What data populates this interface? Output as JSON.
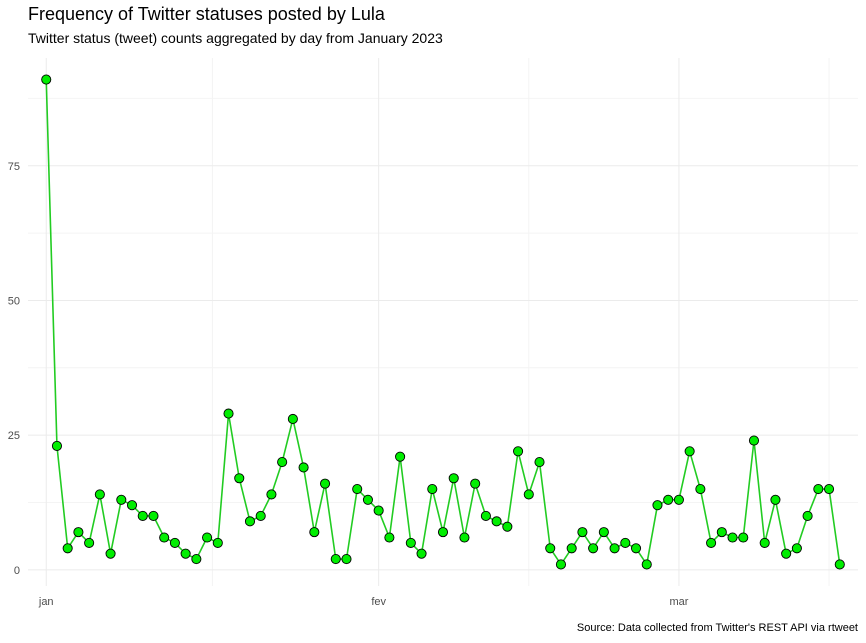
{
  "chart_data": {
    "type": "line",
    "title": "Frequency of Twitter statuses posted by Lula",
    "subtitle": "Twitter status (tweet) counts aggregated by day from January 2023",
    "caption": "Source: Data collected from Twitter's REST API via rtweet",
    "xlabel": "",
    "ylabel": "",
    "x_start": "2023-01-01",
    "x_tick_labels": [
      "jan",
      "fev",
      "mar"
    ],
    "x_tick_dates": [
      "2023-01-01",
      "2023-02-01",
      "2023-03-01"
    ],
    "y_ticks": [
      0,
      25,
      50,
      75
    ],
    "ylim": [
      -3,
      95
    ],
    "grid": true,
    "legend": "none",
    "colors": {
      "line": "#22cc22",
      "point_fill": "#00ee00",
      "point_stroke": "#000000",
      "grid": "#ebebeb"
    },
    "series": [
      {
        "dates": [
          "2023-01-01",
          "2023-01-02",
          "2023-01-03",
          "2023-01-04",
          "2023-01-05",
          "2023-01-06",
          "2023-01-07",
          "2023-01-08",
          "2023-01-09",
          "2023-01-10",
          "2023-01-11",
          "2023-01-12",
          "2023-01-13",
          "2023-01-14",
          "2023-01-15",
          "2023-01-16",
          "2023-01-17",
          "2023-01-18",
          "2023-01-19",
          "2023-01-20",
          "2023-01-21",
          "2023-01-22",
          "2023-01-23",
          "2023-01-24",
          "2023-01-25",
          "2023-01-26",
          "2023-01-27",
          "2023-01-28",
          "2023-01-29",
          "2023-01-30",
          "2023-01-31",
          "2023-02-01",
          "2023-02-02",
          "2023-02-03",
          "2023-02-04",
          "2023-02-05",
          "2023-02-06",
          "2023-02-07",
          "2023-02-08",
          "2023-02-09",
          "2023-02-10",
          "2023-02-11",
          "2023-02-12",
          "2023-02-13",
          "2023-02-14",
          "2023-02-15",
          "2023-02-16",
          "2023-02-17",
          "2023-02-18",
          "2023-02-19",
          "2023-02-20",
          "2023-02-21",
          "2023-02-22",
          "2023-02-23",
          "2023-02-24",
          "2023-02-25",
          "2023-02-26",
          "2023-02-27",
          "2023-02-28",
          "2023-03-01",
          "2023-03-02",
          "2023-03-03",
          "2023-03-04",
          "2023-03-05",
          "2023-03-06",
          "2023-03-07",
          "2023-03-08",
          "2023-03-09",
          "2023-03-10",
          "2023-03-11",
          "2023-03-12",
          "2023-03-13",
          "2023-03-14",
          "2023-03-15",
          "2023-03-16"
        ],
        "values": [
          91,
          23,
          4,
          7,
          5,
          14,
          3,
          13,
          12,
          10,
          10,
          6,
          5,
          3,
          2,
          6,
          5,
          29,
          17,
          9,
          10,
          14,
          20,
          28,
          19,
          7,
          16,
          2,
          2,
          15,
          13,
          11,
          6,
          21,
          5,
          3,
          15,
          7,
          17,
          6,
          16,
          10,
          9,
          8,
          22,
          14,
          20,
          4,
          1,
          4,
          7,
          4,
          7,
          4,
          5,
          4,
          1,
          12,
          13,
          13,
          22,
          15,
          5,
          7,
          6,
          6,
          24,
          5,
          13,
          3,
          4,
          10,
          15,
          15,
          1
        ]
      }
    ]
  }
}
